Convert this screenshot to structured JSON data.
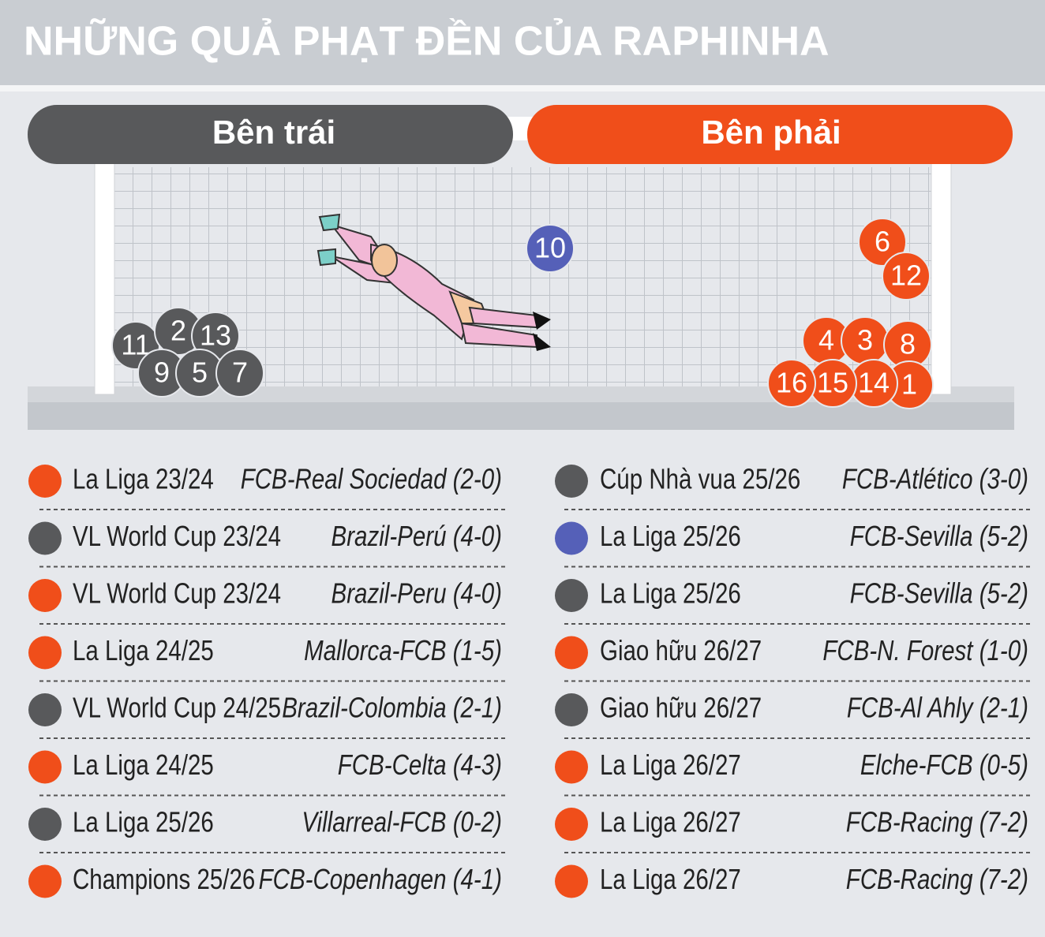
{
  "header": {
    "title": "NHỮNG QUẢ PHẠT ĐỀN CỦA RAPHINHA"
  },
  "sides": {
    "left": "Bên trái",
    "right": "Bên phải"
  },
  "colors": {
    "orange": "#f04e1a",
    "gray": "#58595b",
    "blue": "#5560b8"
  },
  "penalties": [
    {
      "number": 1,
      "color": "orange",
      "competition": "La Liga 23/24",
      "match": "FCB-Real Sociedad (2-0)"
    },
    {
      "number": 2,
      "color": "gray",
      "competition": "VL World Cup 23/24",
      "match": "Brazil-Perú (4-0)"
    },
    {
      "number": 3,
      "color": "orange",
      "competition": "VL World Cup 23/24",
      "match": "Brazil-Peru (4-0)"
    },
    {
      "number": 4,
      "color": "orange",
      "competition": "La Liga 24/25",
      "match": "Mallorca-FCB (1-5)"
    },
    {
      "number": 5,
      "color": "gray",
      "competition": "VL World Cup 24/25",
      "match": "Brazil-Colombia (2-1)"
    },
    {
      "number": 6,
      "color": "orange",
      "competition": "La Liga 24/25",
      "match": "FCB-Celta (4-3)"
    },
    {
      "number": 7,
      "color": "gray",
      "competition": "La Liga 25/26",
      "match": "Villarreal-FCB (0-2)"
    },
    {
      "number": 8,
      "color": "orange",
      "competition": "Champions 25/26",
      "match": "FCB-Copenhagen (4-1)"
    },
    {
      "number": 9,
      "color": "gray",
      "competition": "Cúp Nhà vua 25/26",
      "match": "FCB-Atlético (3-0)"
    },
    {
      "number": 10,
      "color": "blue",
      "competition": "La Liga 25/26",
      "match": "FCB-Sevilla (5-2)"
    },
    {
      "number": 11,
      "color": "gray",
      "competition": "La Liga 25/26",
      "match": "FCB-Sevilla (5-2)"
    },
    {
      "number": 12,
      "color": "orange",
      "competition": "Giao hữu 26/27",
      "match": "FCB-N. Forest (1-0)"
    },
    {
      "number": 13,
      "color": "gray",
      "competition": "Giao hữu 26/27",
      "match": "FCB-Al Ahly (2-1)"
    },
    {
      "number": 14,
      "color": "orange",
      "competition": "La Liga 26/27",
      "match": "Elche-FCB (0-5)"
    },
    {
      "number": 15,
      "color": "orange",
      "competition": "La Liga 26/27",
      "match": "FCB-Racing (7-2)"
    },
    {
      "number": 16,
      "color": "orange",
      "competition": "La Liga 26/27",
      "match": "FCB-Racing (7-2)"
    }
  ]
}
